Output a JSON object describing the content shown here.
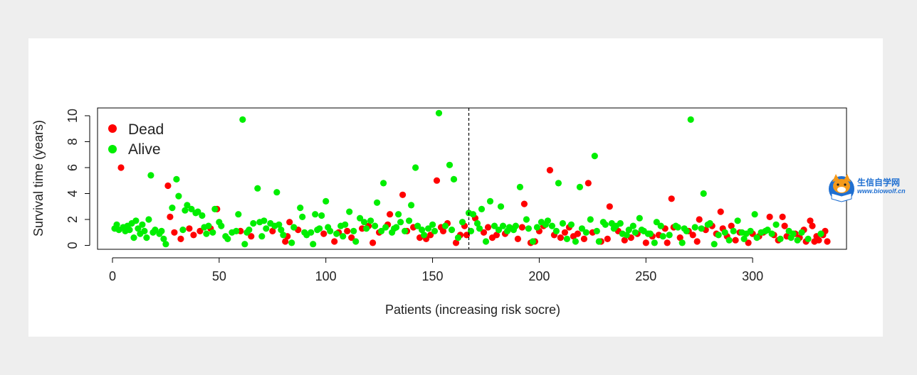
{
  "chart_data": {
    "type": "scatter",
    "title": "",
    "xlabel": "Patients (increasing risk socre)",
    "ylabel": "Survival time (years)",
    "xlim": [
      -7,
      344
    ],
    "ylim": [
      -0.3,
      10.6
    ],
    "x_ticks": [
      0,
      50,
      100,
      150,
      200,
      250,
      300
    ],
    "y_ticks": [
      0,
      2,
      4,
      6,
      8,
      10
    ],
    "cutoff_x": 167,
    "legend_position": "top-left",
    "grid": false,
    "series": [
      {
        "name": "Dead",
        "color": "#ff0000",
        "points": [
          [
            4,
            6.0
          ],
          [
            26,
            4.6
          ],
          [
            27,
            2.2
          ],
          [
            29,
            1.0
          ],
          [
            32,
            0.5
          ],
          [
            36,
            1.3
          ],
          [
            38,
            0.8
          ],
          [
            41,
            1.1
          ],
          [
            46,
            1.3
          ],
          [
            49,
            2.8
          ],
          [
            60,
            1.1
          ],
          [
            65,
            0.7
          ],
          [
            75,
            1.1
          ],
          [
            81,
            0.3
          ],
          [
            82,
            0.7
          ],
          [
            83,
            1.8
          ],
          [
            87,
            1.2
          ],
          [
            99,
            0.9
          ],
          [
            104,
            0.3
          ],
          [
            106,
            1.0
          ],
          [
            110,
            1.1
          ],
          [
            112,
            0.6
          ],
          [
            117,
            1.3
          ],
          [
            120,
            1.5
          ],
          [
            122,
            0.2
          ],
          [
            125,
            1.0
          ],
          [
            129,
            1.6
          ],
          [
            130,
            2.4
          ],
          [
            136,
            3.9
          ],
          [
            138,
            1.1
          ],
          [
            141,
            1.4
          ],
          [
            144,
            0.6
          ],
          [
            147,
            0.5
          ],
          [
            149,
            0.8
          ],
          [
            152,
            5.0
          ],
          [
            154,
            1.4
          ],
          [
            155,
            1.1
          ],
          [
            157,
            1.7
          ],
          [
            161,
            0.2
          ],
          [
            163,
            0.8
          ],
          [
            165,
            1.5
          ],
          [
            166,
            0.8
          ],
          [
            170,
            2.1
          ],
          [
            174,
            1.0
          ],
          [
            176,
            1.4
          ],
          [
            178,
            0.6
          ],
          [
            180,
            0.8
          ],
          [
            184,
            0.9
          ],
          [
            187,
            1.3
          ],
          [
            190,
            0.5
          ],
          [
            192,
            1.4
          ],
          [
            193,
            3.2
          ],
          [
            196,
            0.2
          ],
          [
            198,
            0.3
          ],
          [
            200,
            1.1
          ],
          [
            202,
            1.5
          ],
          [
            205,
            5.8
          ],
          [
            207,
            0.8
          ],
          [
            210,
            0.6
          ],
          [
            212,
            1.0
          ],
          [
            214,
            1.4
          ],
          [
            216,
            0.7
          ],
          [
            218,
            0.9
          ],
          [
            221,
            0.5
          ],
          [
            223,
            4.8
          ],
          [
            225,
            1.0
          ],
          [
            229,
            0.3
          ],
          [
            232,
            0.5
          ],
          [
            233,
            3.0
          ],
          [
            237,
            1.1
          ],
          [
            240,
            0.4
          ],
          [
            243,
            0.6
          ],
          [
            246,
            0.9
          ],
          [
            250,
            0.2
          ],
          [
            253,
            0.7
          ],
          [
            256,
            0.8
          ],
          [
            259,
            1.3
          ],
          [
            260,
            0.2
          ],
          [
            262,
            3.6
          ],
          [
            263,
            1.4
          ],
          [
            266,
            0.6
          ],
          [
            270,
            1.1
          ],
          [
            272,
            0.8
          ],
          [
            274,
            0.3
          ],
          [
            275,
            2.0
          ],
          [
            278,
            1.2
          ],
          [
            281,
            1.5
          ],
          [
            283,
            0.9
          ],
          [
            285,
            2.6
          ],
          [
            286,
            1.3
          ],
          [
            288,
            0.7
          ],
          [
            290,
            1.5
          ],
          [
            292,
            0.4
          ],
          [
            294,
            1.0
          ],
          [
            298,
            0.2
          ],
          [
            300,
            0.9
          ],
          [
            303,
            0.7
          ],
          [
            305,
            1.0
          ],
          [
            308,
            2.2
          ],
          [
            310,
            0.8
          ],
          [
            312,
            0.4
          ],
          [
            314,
            2.2
          ],
          [
            315,
            1.5
          ],
          [
            316,
            0.7
          ],
          [
            320,
            0.9
          ],
          [
            322,
            0.6
          ],
          [
            324,
            1.2
          ],
          [
            325,
            0.3
          ],
          [
            327,
            1.9
          ],
          [
            328,
            1.5
          ],
          [
            329,
            0.3
          ],
          [
            330,
            0.7
          ],
          [
            331,
            0.4
          ],
          [
            333,
            0.8
          ],
          [
            334,
            1.1
          ],
          [
            335,
            0.3
          ]
        ]
      },
      {
        "name": "Alive",
        "color": "#00ee00",
        "points": [
          [
            1,
            1.3
          ],
          [
            2,
            1.6
          ],
          [
            3,
            1.2
          ],
          [
            5,
            1.4
          ],
          [
            6,
            1.1
          ],
          [
            7,
            1.5
          ],
          [
            8,
            1.2
          ],
          [
            9,
            1.7
          ],
          [
            10,
            0.6
          ],
          [
            11,
            1.9
          ],
          [
            12,
            1.3
          ],
          [
            13,
            0.9
          ],
          [
            14,
            1.6
          ],
          [
            15,
            1.1
          ],
          [
            16,
            0.6
          ],
          [
            17,
            2.0
          ],
          [
            18,
            5.4
          ],
          [
            19,
            1.0
          ],
          [
            20,
            1.2
          ],
          [
            22,
            0.9
          ],
          [
            23,
            1.1
          ],
          [
            24,
            0.5
          ],
          [
            25,
            0.1
          ],
          [
            28,
            2.9
          ],
          [
            30,
            5.1
          ],
          [
            31,
            3.8
          ],
          [
            33,
            1.2
          ],
          [
            34,
            2.7
          ],
          [
            35,
            3.1
          ],
          [
            37,
            2.8
          ],
          [
            39,
            2.5
          ],
          [
            40,
            2.6
          ],
          [
            42,
            2.3
          ],
          [
            43,
            1.4
          ],
          [
            44,
            0.9
          ],
          [
            45,
            1.5
          ],
          [
            47,
            1.0
          ],
          [
            48,
            2.8
          ],
          [
            50,
            1.8
          ],
          [
            51,
            1.5
          ],
          [
            53,
            0.7
          ],
          [
            54,
            0.5
          ],
          [
            56,
            1.0
          ],
          [
            58,
            1.1
          ],
          [
            59,
            2.4
          ],
          [
            61,
            9.7
          ],
          [
            62,
            0.1
          ],
          [
            63,
            1.0
          ],
          [
            64,
            1.2
          ],
          [
            66,
            1.7
          ],
          [
            68,
            4.4
          ],
          [
            69,
            1.8
          ],
          [
            70,
            0.7
          ],
          [
            71,
            1.9
          ],
          [
            72,
            1.3
          ],
          [
            74,
            1.7
          ],
          [
            76,
            1.5
          ],
          [
            77,
            4.1
          ],
          [
            78,
            1.6
          ],
          [
            79,
            1.2
          ],
          [
            80,
            0.8
          ],
          [
            84,
            0.2
          ],
          [
            85,
            1.4
          ],
          [
            88,
            2.9
          ],
          [
            89,
            2.2
          ],
          [
            90,
            1.0
          ],
          [
            91,
            0.8
          ],
          [
            93,
            1.0
          ],
          [
            94,
            0.1
          ],
          [
            95,
            2.4
          ],
          [
            96,
            1.2
          ],
          [
            97,
            1.3
          ],
          [
            98,
            2.3
          ],
          [
            100,
            3.4
          ],
          [
            101,
            1.4
          ],
          [
            102,
            1.1
          ],
          [
            105,
            0.9
          ],
          [
            107,
            1.5
          ],
          [
            108,
            0.7
          ],
          [
            109,
            1.6
          ],
          [
            111,
            2.6
          ],
          [
            113,
            1.1
          ],
          [
            114,
            0.3
          ],
          [
            116,
            2.1
          ],
          [
            118,
            1.8
          ],
          [
            119,
            1.3
          ],
          [
            121,
            1.9
          ],
          [
            123,
            1.5
          ],
          [
            124,
            3.3
          ],
          [
            126,
            1.1
          ],
          [
            127,
            4.8
          ],
          [
            128,
            1.4
          ],
          [
            131,
            1.0
          ],
          [
            132,
            1.3
          ],
          [
            133,
            1.4
          ],
          [
            134,
            2.4
          ],
          [
            135,
            1.8
          ],
          [
            137,
            1.1
          ],
          [
            139,
            1.9
          ],
          [
            140,
            3.1
          ],
          [
            142,
            6.0
          ],
          [
            143,
            1.5
          ],
          [
            145,
            1.2
          ],
          [
            146,
            0.8
          ],
          [
            148,
            1.3
          ],
          [
            150,
            1.6
          ],
          [
            151,
            1.1
          ],
          [
            153,
            10.2
          ],
          [
            156,
            1.5
          ],
          [
            158,
            6.2
          ],
          [
            159,
            1.2
          ],
          [
            160,
            5.1
          ],
          [
            162,
            0.6
          ],
          [
            164,
            1.8
          ],
          [
            167,
            2.5
          ],
          [
            168,
            1.1
          ],
          [
            169,
            2.4
          ],
          [
            171,
            1.7
          ],
          [
            172,
            1.3
          ],
          [
            173,
            2.8
          ],
          [
            175,
            0.3
          ],
          [
            177,
            3.4
          ],
          [
            179,
            1.5
          ],
          [
            181,
            1.2
          ],
          [
            182,
            3.0
          ],
          [
            183,
            1.5
          ],
          [
            185,
            1.1
          ],
          [
            186,
            1.4
          ],
          [
            188,
            1.2
          ],
          [
            189,
            1.5
          ],
          [
            191,
            4.5
          ],
          [
            194,
            2.0
          ],
          [
            195,
            1.3
          ],
          [
            197,
            0.3
          ],
          [
            199,
            1.4
          ],
          [
            201,
            1.8
          ],
          [
            203,
            1.6
          ],
          [
            204,
            1.9
          ],
          [
            206,
            1.5
          ],
          [
            208,
            1.1
          ],
          [
            209,
            4.8
          ],
          [
            211,
            1.7
          ],
          [
            213,
            0.5
          ],
          [
            215,
            1.6
          ],
          [
            217,
            0.3
          ],
          [
            219,
            4.5
          ],
          [
            220,
            1.3
          ],
          [
            222,
            1.0
          ],
          [
            224,
            2.0
          ],
          [
            226,
            6.9
          ],
          [
            227,
            1.1
          ],
          [
            228,
            0.3
          ],
          [
            230,
            1.8
          ],
          [
            231,
            1.6
          ],
          [
            234,
            1.7
          ],
          [
            235,
            1.3
          ],
          [
            236,
            1.5
          ],
          [
            238,
            1.7
          ],
          [
            239,
            0.9
          ],
          [
            241,
            0.8
          ],
          [
            242,
            1.2
          ],
          [
            244,
            1.5
          ],
          [
            245,
            1.0
          ],
          [
            247,
            2.1
          ],
          [
            248,
            1.2
          ],
          [
            249,
            1.1
          ],
          [
            251,
            0.9
          ],
          [
            252,
            0.9
          ],
          [
            254,
            0.2
          ],
          [
            255,
            1.8
          ],
          [
            257,
            1.5
          ],
          [
            258,
            0.7
          ],
          [
            261,
            0.8
          ],
          [
            264,
            1.5
          ],
          [
            265,
            1.4
          ],
          [
            267,
            0.2
          ],
          [
            268,
            1.3
          ],
          [
            269,
            1.1
          ],
          [
            271,
            9.7
          ],
          [
            273,
            1.4
          ],
          [
            276,
            1.3
          ],
          [
            277,
            4.0
          ],
          [
            279,
            1.6
          ],
          [
            280,
            1.7
          ],
          [
            282,
            0.1
          ],
          [
            284,
            0.8
          ],
          [
            287,
            1.0
          ],
          [
            289,
            0.4
          ],
          [
            291,
            1.1
          ],
          [
            293,
            1.9
          ],
          [
            295,
            1.0
          ],
          [
            296,
            0.5
          ],
          [
            297,
            0.9
          ],
          [
            299,
            1.1
          ],
          [
            301,
            2.4
          ],
          [
            302,
            0.6
          ],
          [
            304,
            1.0
          ],
          [
            306,
            1.1
          ],
          [
            307,
            1.2
          ],
          [
            309,
            0.9
          ],
          [
            311,
            1.6
          ],
          [
            313,
            0.5
          ],
          [
            317,
            1.1
          ],
          [
            318,
            0.6
          ],
          [
            319,
            0.9
          ],
          [
            321,
            0.4
          ],
          [
            323,
            1.0
          ],
          [
            326,
            0.5
          ],
          [
            332,
            0.9
          ]
        ]
      }
    ]
  },
  "watermark": {
    "title": "生信自学网",
    "url": "www.biowolf.cn"
  }
}
